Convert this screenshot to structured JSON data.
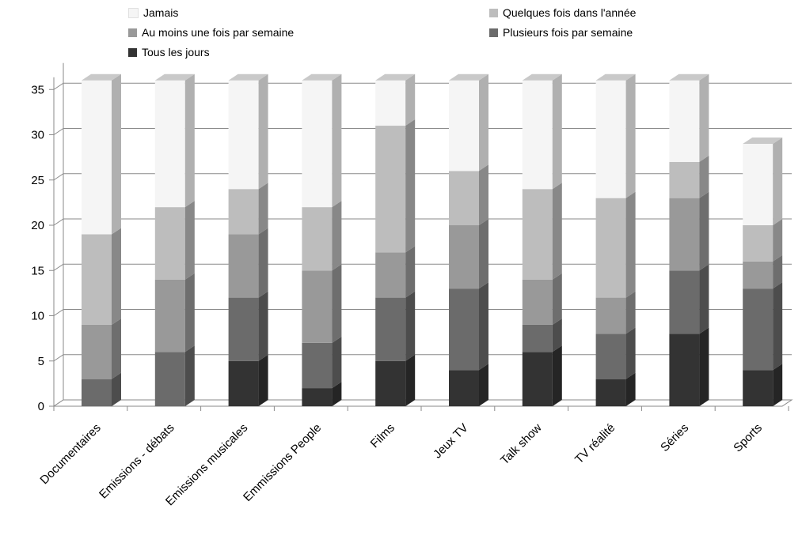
{
  "chart_data": {
    "type": "bar",
    "stacked": true,
    "three_d": true,
    "categories": [
      "Documentaires",
      "Emissions - débats",
      "Emissions musicales",
      "Emmissions People",
      "Films",
      "Jeux TV",
      "Talk show",
      "TV réalité",
      "Séries",
      "Sports"
    ],
    "series": [
      {
        "name": "Tous les jours",
        "color": "#333333",
        "values": [
          0,
          0,
          5,
          2,
          5,
          4,
          6,
          3,
          8,
          4
        ]
      },
      {
        "name": "Plusieurs fois par semaine",
        "color": "#6b6b6b",
        "values": [
          3,
          6,
          7,
          5,
          7,
          9,
          3,
          5,
          7,
          9
        ]
      },
      {
        "name": "Au moins une fois par semaine",
        "color": "#999999",
        "values": [
          6,
          8,
          7,
          8,
          5,
          7,
          5,
          4,
          8,
          3
        ]
      },
      {
        "name": "Quelques fois dans l'année",
        "color": "#bdbdbd",
        "values": [
          10,
          8,
          5,
          7,
          14,
          6,
          10,
          11,
          4,
          4
        ]
      },
      {
        "name": "Jamais",
        "color": "#f5f5f5",
        "values": [
          17,
          14,
          12,
          14,
          5,
          10,
          12,
          13,
          9,
          9
        ]
      }
    ],
    "yticks": [
      "0",
      "5",
      "10",
      "15",
      "20",
      "25",
      "30",
      "35"
    ],
    "ylim": [
      0,
      36
    ],
    "grid": true,
    "legend_placement": "top"
  }
}
